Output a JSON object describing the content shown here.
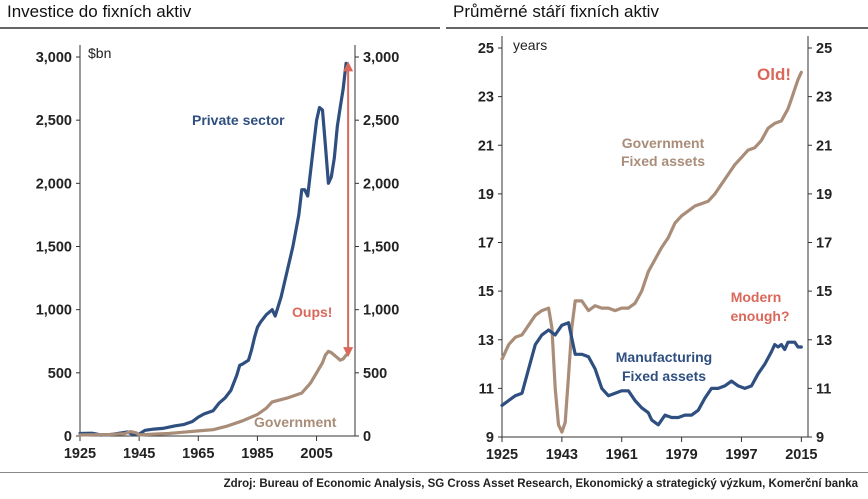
{
  "source": "Zdroj: Bureau of Economic Analysis, SG Cross Asset Research, Ekonomický a strategický výzkum, Komerční banka",
  "chart_data": [
    {
      "type": "line",
      "title": "Investice do fixních aktiv",
      "ylabel": "$bn",
      "xlim": [
        1925,
        2018
      ],
      "ylim": [
        0,
        3000
      ],
      "yticks": [
        0,
        500,
        1000,
        1500,
        2000,
        2500,
        3000
      ],
      "ytick_labels": [
        "0",
        "500",
        "1,000",
        "1,500",
        "2,000",
        "2,500",
        "3,000"
      ],
      "xticks": [
        1925,
        1945,
        1965,
        1985,
        2005
      ],
      "xtick_labels": [
        "1925",
        "1945",
        "1965",
        "1985",
        "2005"
      ],
      "series": [
        {
          "name": "Private sector",
          "color": "#2e4f7f",
          "x": [
            1925,
            1929,
            1930,
            1932,
            1935,
            1940,
            1941,
            1943,
            1945,
            1947,
            1950,
            1953,
            1955,
            1957,
            1960,
            1963,
            1965,
            1967,
            1970,
            1972,
            1974,
            1976,
            1978,
            1979,
            1980,
            1982,
            1983,
            1984,
            1985,
            1986,
            1988,
            1990,
            1991,
            1993,
            1995,
            1997,
            1999,
            2000,
            2001,
            2002,
            2004,
            2005,
            2006,
            2007,
            2008,
            2009,
            2010,
            2011,
            2012,
            2013,
            2014,
            2015
          ],
          "y": [
            20,
            22,
            18,
            8,
            10,
            28,
            32,
            12,
            15,
            45,
            55,
            60,
            70,
            80,
            90,
            115,
            150,
            175,
            200,
            260,
            300,
            360,
            480,
            560,
            570,
            600,
            680,
            780,
            860,
            900,
            960,
            1000,
            950,
            1100,
            1300,
            1500,
            1750,
            1950,
            1950,
            1900,
            2300,
            2500,
            2600,
            2580,
            2300,
            2000,
            2050,
            2200,
            2450,
            2600,
            2750,
            2950
          ]
        },
        {
          "name": "Government",
          "color": "#a98d79",
          "x": [
            1925,
            1930,
            1935,
            1940,
            1942,
            1944,
            1945,
            1950,
            1955,
            1960,
            1965,
            1970,
            1975,
            1980,
            1985,
            1988,
            1990,
            1995,
            2000,
            2003,
            2005,
            2007,
            2008,
            2009,
            2010,
            2011,
            2012,
            2013,
            2014,
            2015
          ],
          "y": [
            8,
            10,
            12,
            18,
            35,
            25,
            8,
            15,
            20,
            30,
            40,
            50,
            80,
            120,
            170,
            220,
            270,
            300,
            340,
            420,
            500,
            580,
            640,
            670,
            660,
            640,
            620,
            600,
            610,
            640
          ]
        }
      ],
      "annotations": [
        {
          "text": "Private sector",
          "color": "#2e4f7f"
        },
        {
          "text": "Oups!",
          "color": "#d9685a"
        },
        {
          "text": "Government",
          "color": "#a98d79"
        }
      ],
      "arrow": {
        "x": 2015,
        "from": 640,
        "to": 2950,
        "color": "#d9685a"
      }
    },
    {
      "type": "line",
      "title": "Průměrné stáří fixních aktiv",
      "ylabel": "years",
      "xlim": [
        1925,
        2017
      ],
      "ylim": [
        9,
        25
      ],
      "yticks": [
        9,
        11,
        13,
        15,
        17,
        19,
        21,
        23,
        25
      ],
      "ytick_labels": [
        "9",
        "11",
        "13",
        "15",
        "17",
        "19",
        "21",
        "23",
        "25"
      ],
      "xticks": [
        1925,
        1943,
        1961,
        1979,
        1997,
        2015
      ],
      "xtick_labels": [
        "1925",
        "1943",
        "1961",
        "1979",
        "1997",
        "2015"
      ],
      "series": [
        {
          "name": "Government Fixed assets",
          "color": "#a98d79",
          "x": [
            1925,
            1927,
            1929,
            1931,
            1933,
            1935,
            1937,
            1939,
            1940,
            1941,
            1942,
            1943,
            1944,
            1945,
            1946,
            1947,
            1949,
            1951,
            1953,
            1955,
            1957,
            1959,
            1961,
            1963,
            1965,
            1967,
            1969,
            1971,
            1973,
            1975,
            1977,
            1979,
            1981,
            1983,
            1985,
            1987,
            1989,
            1991,
            1993,
            1995,
            1997,
            1999,
            2001,
            2003,
            2005,
            2007,
            2009,
            2011,
            2012,
            2013,
            2014,
            2015
          ],
          "y": [
            12.2,
            12.8,
            13.1,
            13.2,
            13.6,
            14.0,
            14.2,
            14.3,
            13.5,
            11.0,
            9.5,
            9.2,
            9.6,
            11.5,
            13.5,
            14.6,
            14.6,
            14.2,
            14.4,
            14.3,
            14.3,
            14.2,
            14.3,
            14.3,
            14.5,
            15.0,
            15.8,
            16.3,
            16.8,
            17.2,
            17.8,
            18.1,
            18.3,
            18.5,
            18.6,
            18.7,
            19.0,
            19.4,
            19.8,
            20.2,
            20.5,
            20.8,
            20.9,
            21.2,
            21.7,
            21.9,
            22.0,
            22.5,
            22.9,
            23.3,
            23.7,
            24.0
          ]
        },
        {
          "name": "Manufacturing Fixed assets",
          "color": "#2e4f7f",
          "x": [
            1925,
            1927,
            1929,
            1931,
            1933,
            1935,
            1937,
            1939,
            1940,
            1941,
            1943,
            1945,
            1947,
            1949,
            1951,
            1953,
            1955,
            1957,
            1959,
            1961,
            1963,
            1965,
            1967,
            1969,
            1970,
            1971,
            1972,
            1974,
            1976,
            1978,
            1980,
            1982,
            1984,
            1986,
            1988,
            1990,
            1992,
            1994,
            1996,
            1998,
            2000,
            2002,
            2004,
            2006,
            2007,
            2008,
            2009,
            2010,
            2011,
            2012,
            2013,
            2014,
            2015
          ],
          "y": [
            10.3,
            10.5,
            10.7,
            10.8,
            11.8,
            12.8,
            13.2,
            13.4,
            13.3,
            13.2,
            13.6,
            13.7,
            12.4,
            12.4,
            12.3,
            11.8,
            11.0,
            10.7,
            10.8,
            10.9,
            10.9,
            10.5,
            10.2,
            10.0,
            9.7,
            9.6,
            9.5,
            9.9,
            9.8,
            9.8,
            9.9,
            9.9,
            10.1,
            10.6,
            11.0,
            11.0,
            11.1,
            11.3,
            11.1,
            11.0,
            11.1,
            11.6,
            12.0,
            12.5,
            12.8,
            12.7,
            12.8,
            12.6,
            12.9,
            12.9,
            12.9,
            12.7,
            12.7
          ]
        }
      ],
      "annotations": [
        {
          "text": "Old!",
          "color": "#d9685a"
        },
        {
          "text": "Government",
          "color": "#a98d79"
        },
        {
          "text": "Fixed assets",
          "color": "#a98d79"
        },
        {
          "text": "Modern",
          "color": "#d9685a"
        },
        {
          "text": "enough?",
          "color": "#d9685a"
        },
        {
          "text": "Manufacturing",
          "color": "#2e4f7f"
        },
        {
          "text": "Fixed assets",
          "color": "#2e4f7f"
        }
      ]
    }
  ]
}
